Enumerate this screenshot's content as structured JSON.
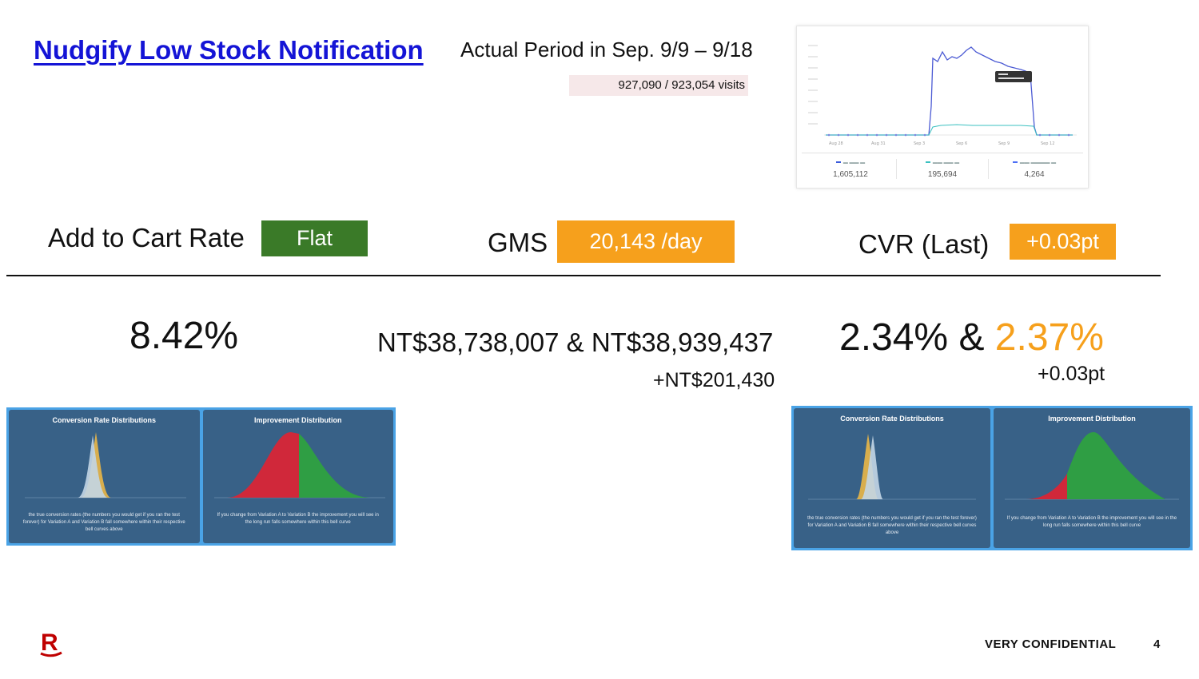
{
  "header": {
    "title": "Nudgify Low Stock Notification",
    "period": "Actual Period in Sep. 9/9 – 9/18",
    "visits": "927,090 / 923,054 visits"
  },
  "ga_chart": {
    "x_ticks": [
      "Aug 28",
      "Aug 31",
      "Sep 3",
      "Sep 6",
      "Sep 9",
      "Sep 12"
    ],
    "stats": [
      {
        "value": "1,605,112",
        "color": "#3b5bdb"
      },
      {
        "value": "195,694",
        "color": "#3bc0c0"
      },
      {
        "value": "4,264",
        "color": "#4c6ef5"
      }
    ]
  },
  "metrics": {
    "atc": {
      "label": "Add to Cart Rate",
      "badge": "Flat",
      "badge_color": "#3a7a28",
      "value": "8.42%"
    },
    "gms": {
      "label": "GMS",
      "badge": "20,143 /day",
      "badge_color": "#f6a01c",
      "value": "NT$38,738,007 & NT$38,939,437",
      "diff": "+NT$201,430"
    },
    "cvr": {
      "label": "CVR (Last)",
      "badge": "+0.03pt",
      "badge_color": "#f6a01c",
      "value_a": "2.34% &",
      "value_b": "2.37%",
      "diff": "+0.03pt"
    }
  },
  "ab_tests": [
    {
      "left_title": "Conversion Rate Distributions",
      "right_title": "Improvement Distribution",
      "left_text": "the true conversion rates (the numbers you would get if you ran the test forever) for Variation A and Variation B fall somewhere within their respective bell curves above",
      "right_text": "If you change from Variation A to Variation B the improvement you will see in the long run falls somewhere within this bell curve"
    },
    {
      "left_title": "Conversion Rate Distributions",
      "right_title": "Improvement Distribution",
      "left_text": "the true conversion rates (the numbers you would get if you ran the test forever) for Variation A and Variation B fall somewhere within their respective bell curves above",
      "right_text": "If you change from Variation A to Variation B the improvement you will see in the long run falls somewhere within this bell curve"
    }
  ],
  "footer": {
    "logo": "R",
    "confidential": "VERY CONFIDENTIAL",
    "page": "4"
  }
}
